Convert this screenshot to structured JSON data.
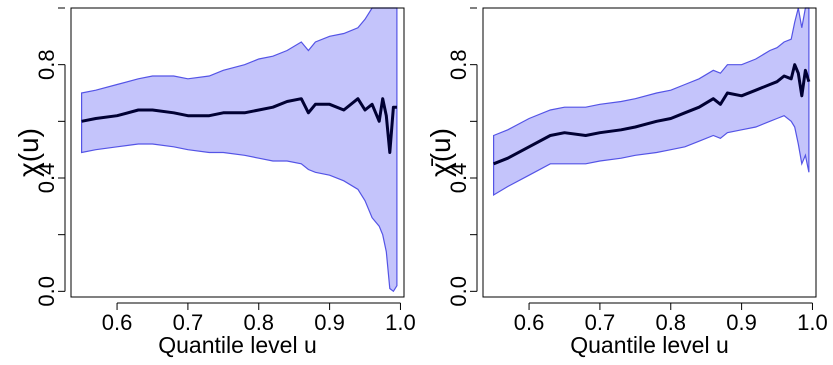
{
  "chart_data": [
    {
      "type": "line",
      "xlabel": "Quantile level u",
      "ylabel": "χ(u)",
      "xlim": [
        0.535,
        1.005
      ],
      "ylim": [
        -0.02,
        1.0
      ],
      "xticks": [
        0.6,
        0.7,
        0.8,
        0.9,
        1.0
      ],
      "xtick_labels": [
        "0.6",
        "0.7",
        "0.8",
        "0.9",
        "1.0"
      ],
      "yticks": [
        0.0,
        0.4,
        0.8
      ],
      "ytick_labels": [
        "0.0",
        "0.4",
        "0.8"
      ],
      "colors": {
        "band_fill": "#c4c4fb",
        "band_edge": "#5454e6",
        "line": "#000033"
      },
      "x": [
        0.55,
        0.57,
        0.6,
        0.63,
        0.65,
        0.68,
        0.7,
        0.73,
        0.75,
        0.78,
        0.8,
        0.82,
        0.84,
        0.86,
        0.87,
        0.88,
        0.9,
        0.92,
        0.94,
        0.95,
        0.96,
        0.97,
        0.975,
        0.98,
        0.985,
        0.99,
        0.995
      ],
      "series": [
        {
          "values": [
            0.6,
            0.61,
            0.62,
            0.64,
            0.64,
            0.63,
            0.62,
            0.62,
            0.63,
            0.63,
            0.64,
            0.65,
            0.67,
            0.68,
            0.63,
            0.66,
            0.66,
            0.64,
            0.68,
            0.64,
            0.66,
            0.6,
            0.68,
            0.62,
            0.49,
            0.65,
            0.65
          ]
        }
      ],
      "band": {
        "upper": [
          0.7,
          0.71,
          0.73,
          0.75,
          0.76,
          0.76,
          0.75,
          0.76,
          0.78,
          0.8,
          0.82,
          0.83,
          0.85,
          0.88,
          0.85,
          0.88,
          0.9,
          0.91,
          0.93,
          0.96,
          1.0,
          1.0,
          1.0,
          1.0,
          1.0,
          1.0,
          1.0
        ],
        "lower": [
          0.49,
          0.5,
          0.51,
          0.52,
          0.52,
          0.51,
          0.5,
          0.49,
          0.49,
          0.48,
          0.47,
          0.46,
          0.46,
          0.45,
          0.43,
          0.42,
          0.41,
          0.39,
          0.36,
          0.32,
          0.26,
          0.23,
          0.2,
          0.14,
          0.01,
          0.0,
          0.02
        ]
      }
    },
    {
      "type": "line",
      "xlabel": "Quantile level u",
      "ylabel": "χ̄(u)",
      "xlim": [
        0.535,
        1.005
      ],
      "ylim": [
        -0.02,
        1.0
      ],
      "xticks": [
        0.6,
        0.7,
        0.8,
        0.9,
        1.0
      ],
      "xtick_labels": [
        "0.6",
        "0.7",
        "0.8",
        "0.9",
        "1.0"
      ],
      "yticks": [
        0.0,
        0.4,
        0.8
      ],
      "ytick_labels": [
        "0.0",
        "0.4",
        "0.8"
      ],
      "colors": {
        "band_fill": "#c4c4fb",
        "band_edge": "#5454e6",
        "line": "#000033"
      },
      "x": [
        0.55,
        0.57,
        0.6,
        0.63,
        0.65,
        0.68,
        0.7,
        0.73,
        0.75,
        0.78,
        0.8,
        0.82,
        0.84,
        0.86,
        0.87,
        0.88,
        0.9,
        0.92,
        0.94,
        0.95,
        0.96,
        0.97,
        0.975,
        0.98,
        0.985,
        0.99,
        0.995
      ],
      "series": [
        {
          "values": [
            0.45,
            0.47,
            0.51,
            0.55,
            0.56,
            0.55,
            0.56,
            0.57,
            0.58,
            0.6,
            0.61,
            0.63,
            0.65,
            0.68,
            0.66,
            0.7,
            0.69,
            0.71,
            0.73,
            0.74,
            0.76,
            0.75,
            0.8,
            0.77,
            0.69,
            0.78,
            0.74
          ]
        }
      ],
      "band": {
        "upper": [
          0.55,
          0.57,
          0.61,
          0.64,
          0.65,
          0.65,
          0.66,
          0.67,
          0.68,
          0.7,
          0.71,
          0.73,
          0.75,
          0.78,
          0.77,
          0.8,
          0.8,
          0.82,
          0.85,
          0.86,
          0.88,
          0.89,
          0.95,
          1.0,
          0.93,
          1.0,
          1.0
        ],
        "lower": [
          0.34,
          0.37,
          0.41,
          0.45,
          0.45,
          0.45,
          0.46,
          0.47,
          0.48,
          0.49,
          0.5,
          0.51,
          0.53,
          0.55,
          0.54,
          0.56,
          0.57,
          0.58,
          0.6,
          0.61,
          0.62,
          0.6,
          0.58,
          0.52,
          0.45,
          0.48,
          0.42
        ]
      }
    }
  ]
}
